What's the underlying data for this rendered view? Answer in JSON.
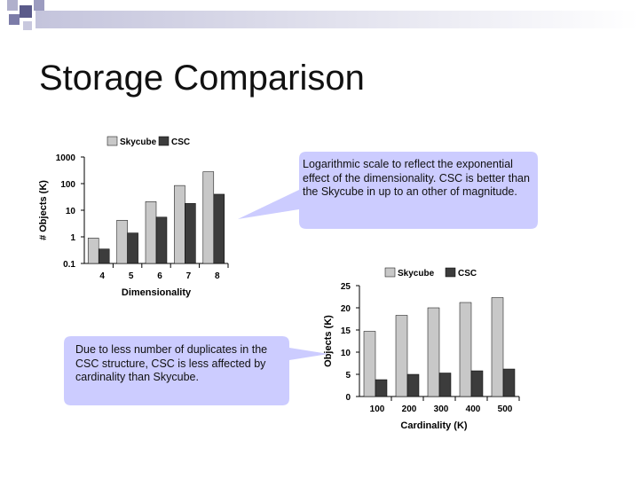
{
  "slide": {
    "title": "Storage Comparison",
    "note_top": "Logarithmic scale to reflect the exponential effect of the dimensionality. CSC is better than the Skycube in up to an other of magnitude.",
    "note_bottom": "Due to less number of duplicates in the CSC structure, CSC is less affected by cardinality than Skycube."
  },
  "colors": {
    "decor_squares": "#5a5a8a",
    "decor_band": "#d6d6e6",
    "skycube": "#c8c8c8",
    "csc": "#3c3c3c",
    "callout_fill": "#ccccff"
  },
  "chart_data": [
    {
      "type": "bar",
      "scale": "log",
      "categories": [
        "4",
        "5",
        "6",
        "7",
        "8"
      ],
      "series": [
        {
          "name": "Skycube",
          "values": [
            0.9,
            4.2,
            21,
            85,
            280
          ]
        },
        {
          "name": "CSC",
          "values": [
            0.35,
            1.4,
            5.5,
            18,
            40
          ]
        }
      ],
      "yticks": [
        "0.1",
        "1",
        "10",
        "100",
        "1000"
      ],
      "xlabel": "Dimensionality",
      "ylabel": "# Objects (K)",
      "ylim": [
        0.1,
        1000
      ],
      "legend": "top",
      "grid": false
    },
    {
      "type": "bar",
      "categories": [
        "100",
        "200",
        "300",
        "400",
        "500"
      ],
      "series": [
        {
          "name": "Skycube",
          "values": [
            14.7,
            18.3,
            20,
            21.2,
            22.3
          ]
        },
        {
          "name": "CSC",
          "values": [
            3.8,
            5,
            5.3,
            5.8,
            6.2
          ]
        }
      ],
      "yticks": [
        "0",
        "5",
        "10",
        "15",
        "20",
        "25"
      ],
      "xlabel": "Cardinality (K)",
      "ylabel": "Objects (K)",
      "ylim": [
        0,
        25
      ],
      "legend": "top",
      "grid": false
    }
  ]
}
